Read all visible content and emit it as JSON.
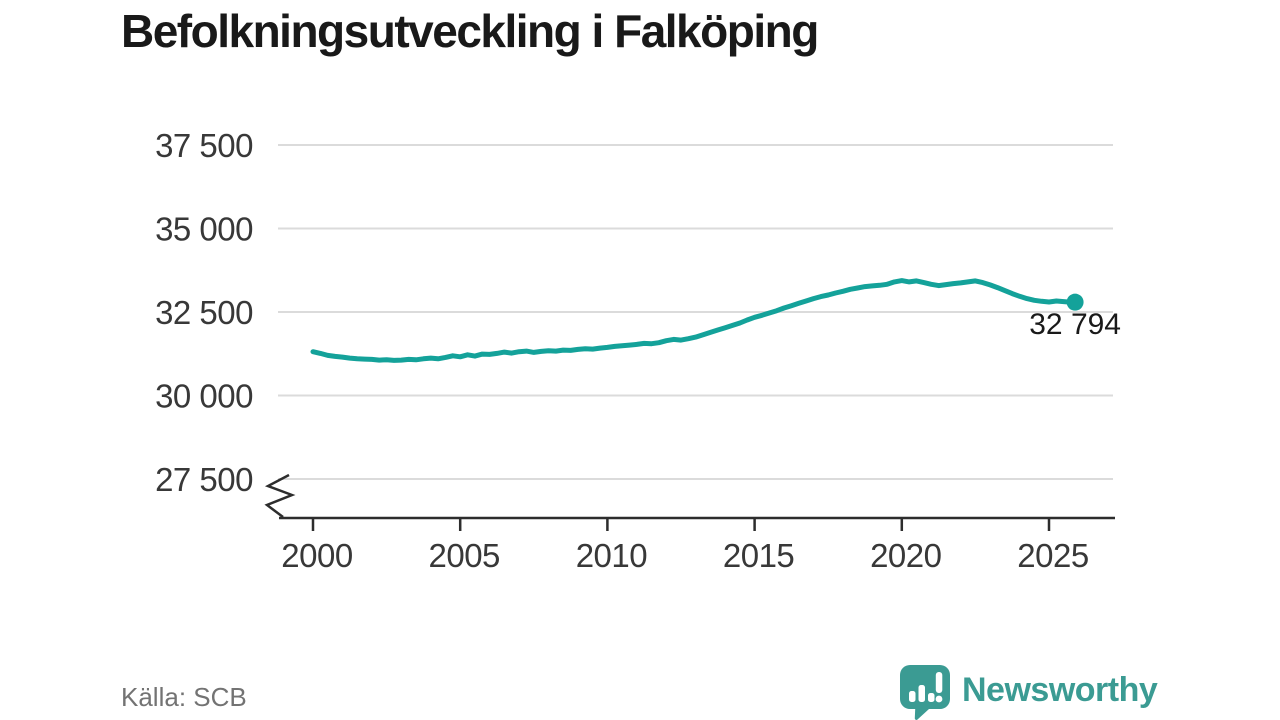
{
  "title": "Befolkningsutveckling i Falköping",
  "source": "Källa: SCB",
  "brand": {
    "name": "Newsworthy"
  },
  "colors": {
    "line": "#14a29a",
    "dot": "#14a29a",
    "grid": "#dbdbdb",
    "axis": "#2d2d2d",
    "tick_text": "#383838",
    "title_text": "#191919",
    "source_text": "#737373",
    "brand_teal": "#3b9b93"
  },
  "chart_data": {
    "type": "line",
    "title": "Befolkningsutveckling i Falköping",
    "xlabel": "",
    "ylabel": "",
    "grid": "horizontal",
    "axis_break_below": 27500,
    "yticks": [
      37500,
      35000,
      32500,
      30000,
      27500
    ],
    "ytick_labels": [
      "37 500",
      "35 000",
      "32 500",
      "30 000",
      "27 500"
    ],
    "xticks": [
      2000,
      2005,
      2010,
      2015,
      2020,
      2025
    ],
    "xtick_labels": [
      "2000",
      "2005",
      "2010",
      "2015",
      "2020",
      "2025"
    ],
    "x_range": [
      2000,
      2027.2
    ],
    "y_range_visible": [
      27000,
      38200
    ],
    "last_point": {
      "x": 2025.75,
      "value": 32794,
      "label": "32 794"
    },
    "x": [
      2000.0,
      2000.25,
      2000.5,
      2000.75,
      2001.0,
      2001.25,
      2001.5,
      2001.75,
      2002.0,
      2002.25,
      2002.5,
      2002.75,
      2003.0,
      2003.25,
      2003.5,
      2003.75,
      2004.0,
      2004.25,
      2004.5,
      2004.75,
      2005.0,
      2005.25,
      2005.5,
      2005.75,
      2006.0,
      2006.25,
      2006.5,
      2006.75,
      2007.0,
      2007.25,
      2007.5,
      2007.75,
      2008.0,
      2008.25,
      2008.5,
      2008.75,
      2009.0,
      2009.25,
      2009.5,
      2009.75,
      2010.0,
      2010.25,
      2010.5,
      2010.75,
      2011.0,
      2011.25,
      2011.5,
      2011.75,
      2012.0,
      2012.25,
      2012.5,
      2012.75,
      2013.0,
      2013.25,
      2013.5,
      2013.75,
      2014.0,
      2014.25,
      2014.5,
      2014.75,
      2015.0,
      2015.25,
      2015.5,
      2015.75,
      2016.0,
      2016.25,
      2016.5,
      2016.75,
      2017.0,
      2017.25,
      2017.5,
      2017.75,
      2018.0,
      2018.25,
      2018.5,
      2018.75,
      2019.0,
      2019.25,
      2019.5,
      2019.75,
      2020.0,
      2020.25,
      2020.5,
      2020.75,
      2021.0,
      2021.25,
      2021.5,
      2021.75,
      2022.0,
      2022.25,
      2022.5,
      2022.75,
      2023.0,
      2023.25,
      2023.5,
      2023.75,
      2024.0,
      2024.25,
      2024.5,
      2024.75,
      2025.0,
      2025.25,
      2025.5,
      2025.75
    ],
    "values": [
      31310,
      31260,
      31200,
      31170,
      31150,
      31120,
      31100,
      31090,
      31080,
      31060,
      31070,
      31050,
      31060,
      31080,
      31070,
      31100,
      31120,
      31100,
      31140,
      31190,
      31160,
      31220,
      31180,
      31240,
      31230,
      31260,
      31300,
      31270,
      31310,
      31330,
      31290,
      31320,
      31340,
      31330,
      31360,
      31350,
      31380,
      31400,
      31390,
      31420,
      31440,
      31470,
      31490,
      31510,
      31530,
      31560,
      31550,
      31580,
      31640,
      31680,
      31660,
      31700,
      31750,
      31820,
      31890,
      31960,
      32030,
      32100,
      32170,
      32260,
      32340,
      32400,
      32470,
      32540,
      32620,
      32690,
      32760,
      32830,
      32900,
      32960,
      33010,
      33070,
      33120,
      33180,
      33220,
      33260,
      33280,
      33300,
      33330,
      33400,
      33440,
      33400,
      33430,
      33380,
      33330,
      33290,
      33320,
      33350,
      33370,
      33400,
      33430,
      33380,
      33310,
      33230,
      33140,
      33050,
      32970,
      32900,
      32850,
      32820,
      32800,
      32830,
      32810,
      32794
    ]
  }
}
